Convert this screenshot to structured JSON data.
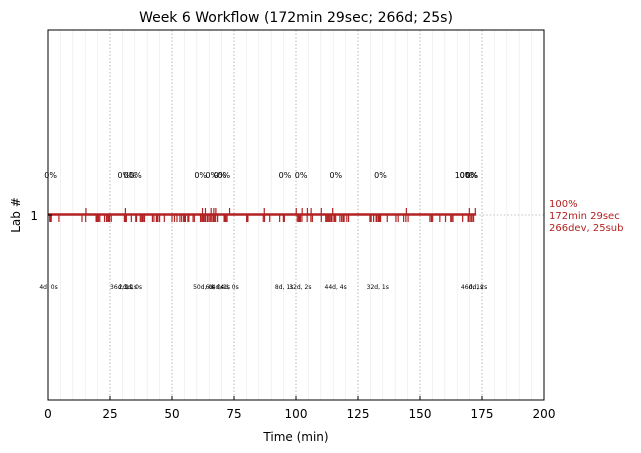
{
  "chart_data": {
    "type": "timeline",
    "title": "Week 6 Workflow (172min 29sec; 266d; 25s)",
    "xlabel": "Time (min)",
    "ylabel": "Lab #",
    "xlim": [
      0,
      200
    ],
    "x_ticks": [
      0,
      25,
      50,
      75,
      100,
      125,
      150,
      175,
      200
    ],
    "y_ticks": [
      1
    ],
    "major_grid_every": 25,
    "minor_grid_every": 5,
    "accent_color": "#b22222",
    "series": [
      {
        "lab": 1,
        "end_min": 172.5,
        "summary": [
          "100%",
          "172min 29sec",
          "266dev, 25sub"
        ],
        "events": [
          0.7,
          1.0,
          1.3,
          4.4,
          13.7,
          15.2,
          19.4,
          19.7,
          19.9,
          20.4,
          20.9,
          22.8,
          23.6,
          24.1,
          24.4,
          24.8,
          25.5,
          30.8,
          31.2,
          31.6,
          33.6,
          35.4,
          35.7,
          37.2,
          37.6,
          38.1,
          38.4,
          38.9,
          42.1,
          42.7,
          43.7,
          44.0,
          44.3,
          45.0,
          46.9,
          50.0,
          51.0,
          52.0,
          53.2,
          53.9,
          54.7,
          55.0,
          55.4,
          56.4,
          56.8,
          58.5,
          59.0,
          61.5,
          62.0,
          62.4,
          62.7,
          63.2,
          63.5,
          64.2,
          64.4,
          65.0,
          65.6,
          66.1,
          66.7,
          67.2,
          67.6,
          68.4,
          71.0,
          71.4,
          71.7,
          72.2,
          80.1,
          80.4,
          80.6,
          86.8,
          87.3,
          89.4,
          93.4,
          94.9,
          95.3,
          100.5,
          101.0,
          101.2,
          101.5,
          101.8,
          102.4,
          104.5,
          106.0,
          106.6,
          110.2,
          112.0,
          112.4,
          112.8,
          113.2,
          113.6,
          114.1,
          114.5,
          115.3,
          115.6,
          116.0,
          117.7,
          118.4,
          119.0,
          119.4,
          120.5,
          121.2,
          129.8,
          130.3,
          131.3,
          132.3,
          132.7,
          133.3,
          133.7,
          134.1,
          136.8,
          140.3,
          141.2,
          143.4,
          144.3,
          145.2,
          154.0,
          154.6,
          155.1,
          158.0,
          160.3,
          162.4,
          162.8,
          163.3,
          167.2,
          169.4,
          169.8,
          170.5,
          171.0,
          171.6
        ],
        "tall_events": [
          15.3,
          31.2,
          62.3,
          63.5,
          65.8,
          66.9,
          67.7,
          73.2,
          87.2,
          100.1,
          102.5,
          104.6,
          106.1,
          110.2,
          114.8,
          144.5,
          169.9,
          172.3
        ],
        "pct_labels": [
          {
            "x": -1.5,
            "text": "0%"
          },
          {
            "x": 28.0,
            "text": "0%"
          },
          {
            "x": 30.5,
            "text": "0%"
          },
          {
            "x": 32.7,
            "text": "0%"
          },
          {
            "x": 59.0,
            "text": "0%"
          },
          {
            "x": 63.5,
            "text": "0%"
          },
          {
            "x": 66.8,
            "text": "0%"
          },
          {
            "x": 68.3,
            "text": "0%"
          },
          {
            "x": 93.0,
            "text": "0%"
          },
          {
            "x": 99.5,
            "text": "0%"
          },
          {
            "x": 113.5,
            "text": "0%"
          },
          {
            "x": 131.5,
            "text": "0%"
          },
          {
            "x": 164.0,
            "text": "100%"
          },
          {
            "x": 166.0,
            "text": "0%"
          },
          {
            "x": 168.3,
            "text": "0%"
          }
        ],
        "dev_labels": [
          {
            "x": -3.5,
            "text": "4d, 0s"
          },
          {
            "x": 25.0,
            "text": "36d, 1s"
          },
          {
            "x": 28.5,
            "text": "2d, 1s"
          },
          {
            "x": 30.5,
            "text": "3d, 0s"
          },
          {
            "x": 58.5,
            "text": "50d, 0s"
          },
          {
            "x": 63.5,
            "text": "6d, 0s"
          },
          {
            "x": 66.0,
            "text": "4d, 1s"
          },
          {
            "x": 69.5,
            "text": "4d, 0s"
          },
          {
            "x": 91.5,
            "text": "8d, 1s"
          },
          {
            "x": 97.3,
            "text": "32d, 2s"
          },
          {
            "x": 111.5,
            "text": "44d, 4s"
          },
          {
            "x": 128.5,
            "text": "32d, 1s"
          },
          {
            "x": 166.5,
            "text": "46d, 1s"
          },
          {
            "x": 169.7,
            "text": "0d, 2s"
          }
        ]
      }
    ]
  }
}
